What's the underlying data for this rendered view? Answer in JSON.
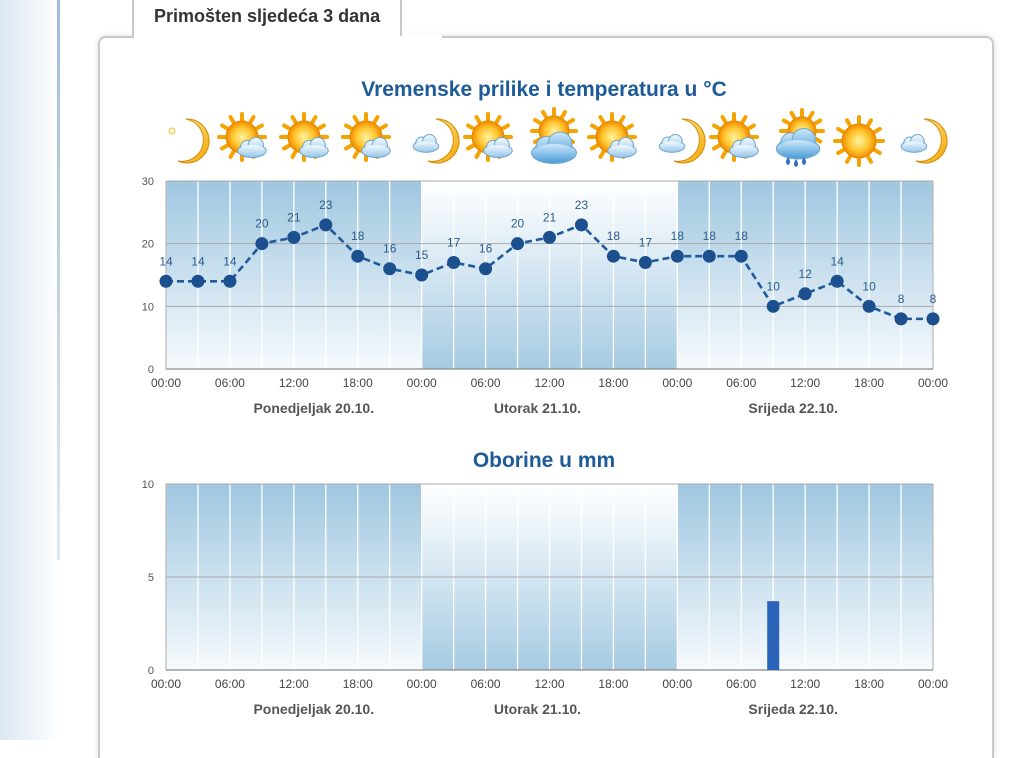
{
  "tab": {
    "label": "Primošten sljedeća 3 dana"
  },
  "colors": {
    "title": "#1d5b98",
    "line": "#1f5a9c",
    "bar": "#2a63b8",
    "band": "#9fc7e0"
  },
  "chart_data": [
    {
      "type": "line",
      "title": "Vremenske prilike i temperatura u °C",
      "x_ticks": [
        "00:00",
        "06:00",
        "12:00",
        "18:00",
        "00:00",
        "06:00",
        "12:00",
        "18:00",
        "00:00",
        "06:00",
        "12:00",
        "18:00",
        "00:00"
      ],
      "day_labels": [
        "Ponedjeljak 20.10.",
        "Utorak 21.10.",
        "Srijeda 22.10."
      ],
      "hours": [
        0,
        3,
        6,
        9,
        12,
        15,
        18,
        21,
        24,
        27,
        30,
        33,
        36,
        39,
        42,
        45,
        48,
        51,
        54,
        57,
        60,
        63,
        66,
        69,
        72
      ],
      "series": [
        {
          "values": [
            14,
            14,
            14,
            20,
            21,
            23,
            18,
            16,
            15,
            17,
            16,
            20,
            21,
            23,
            18,
            17,
            18,
            18,
            18,
            10,
            12,
            14,
            10,
            8,
            8
          ]
        }
      ],
      "weather_icons": [
        "moon-clear-icon",
        "sun-cloud-icon",
        "sun-cloud-icon",
        "sun-cloud-icon",
        "moon-cloud-icon",
        "sun-cloud-icon",
        "cloudy-sun-icon",
        "sun-cloud-icon",
        "moon-cloud-icon",
        "sun-cloud-icon",
        "rain-sun-icon",
        "sun-icon",
        "moon-cloud-icon"
      ],
      "ylim": [
        0,
        30
      ],
      "y_ticks": [
        0,
        10,
        20,
        30
      ],
      "grid": true
    },
    {
      "type": "bar",
      "title": "Oborine u mm",
      "x_ticks": [
        "00:00",
        "06:00",
        "12:00",
        "18:00",
        "00:00",
        "06:00",
        "12:00",
        "18:00",
        "00:00",
        "06:00",
        "12:00",
        "18:00",
        "00:00"
      ],
      "day_labels": [
        "Ponedjeljak 20.10.",
        "Utorak 21.10.",
        "Srijeda 22.10."
      ],
      "bars": [
        {
          "hour": 57,
          "value": 3.7
        }
      ],
      "ylim": [
        0,
        10
      ],
      "y_ticks": [
        0,
        5,
        10
      ],
      "grid": true
    }
  ]
}
